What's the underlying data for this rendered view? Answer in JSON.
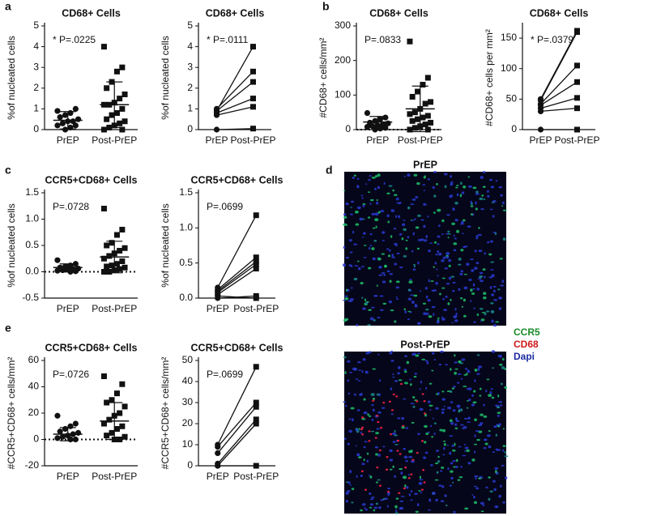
{
  "panel_letters": [
    "a",
    "b",
    "c",
    "d",
    "e"
  ],
  "chart_data": [
    {
      "type": "dot",
      "title": "CD68+ Cells",
      "y_label": "%of nucleated cells",
      "annotation": "* P=.0225",
      "categories": [
        "PrEP",
        "Post-PrEP"
      ],
      "groups": [
        [
          0.9,
          1.0,
          0.8,
          0.7,
          0.6,
          0.5,
          0.4,
          0.4,
          0.3,
          0.2,
          0.2,
          0.1,
          0.0
        ],
        [
          4.0,
          3.0,
          2.8,
          2.3,
          2.0,
          1.7,
          1.5,
          1.3,
          1.2,
          1.2,
          1.0,
          0.8,
          0.7,
          0.5,
          0.4,
          0.3,
          0.2,
          0.1,
          0.0,
          0.0
        ]
      ],
      "mean": [
        0.45,
        1.2
      ],
      "sd": [
        0.42,
        1.1
      ],
      "markers": [
        "circle",
        "square"
      ],
      "ylim": [
        0,
        5
      ],
      "yticks": [
        0,
        1,
        2,
        3,
        4,
        5
      ],
      "zero_line": false
    },
    {
      "type": "paired",
      "title": "CD68+ Cells",
      "y_label": "%of nucleated cells",
      "annotation": "* P=.0111",
      "categories": [
        "PrEP",
        "Post-PrEP"
      ],
      "subjects": [
        [
          0.9,
          4.0
        ],
        [
          1.0,
          2.8
        ],
        [
          0.9,
          2.3
        ],
        [
          0.8,
          1.5
        ],
        [
          0.7,
          1.1
        ],
        [
          0.0,
          0.05
        ]
      ],
      "markers": [
        "circle",
        "square"
      ],
      "ylim": [
        0,
        5
      ],
      "yticks": [
        0,
        1,
        2,
        3,
        4,
        5
      ],
      "zero_line": false
    },
    {
      "type": "dot",
      "title": "CD68+ Cells",
      "y_label": "#CD68+ cells/mm²",
      "annotation": "P=.0833",
      "categories": [
        "PrEP",
        "Post-PrEP"
      ],
      "groups": [
        [
          48,
          35,
          30,
          25,
          20,
          18,
          15,
          12,
          10,
          8,
          5,
          3,
          0
        ],
        [
          255,
          150,
          130,
          110,
          95,
          80,
          75,
          60,
          50,
          45,
          40,
          35,
          30,
          25,
          20,
          15,
          10,
          5,
          0,
          0
        ]
      ],
      "mean": [
        22,
        60
      ],
      "sd": [
        16,
        66
      ],
      "markers": [
        "circle",
        "square"
      ],
      "ylim": [
        0,
        300
      ],
      "yticks": [
        0,
        100,
        200,
        300
      ],
      "zero_line": true
    },
    {
      "type": "paired",
      "title": "CD68+ Cells",
      "y_label": "#CD68+ cells per mm²",
      "annotation": "* P=.0379",
      "categories": [
        "PrEP",
        "Post-PrEP"
      ],
      "subjects": [
        [
          50,
          162
        ],
        [
          48,
          160
        ],
        [
          42,
          105
        ],
        [
          40,
          78
        ],
        [
          35,
          52
        ],
        [
          30,
          35
        ],
        [
          0,
          0
        ]
      ],
      "markers": [
        "circle",
        "square"
      ],
      "ylim": [
        0,
        170
      ],
      "yticks": [
        0,
        50,
        100,
        150
      ],
      "zero_line": false
    },
    {
      "type": "dot",
      "title": "CCR5+CD68+ Cells",
      "y_label": "%of nucleated cells",
      "annotation": "P=.0728",
      "categories": [
        "PrEP",
        "Post-PrEP"
      ],
      "groups": [
        [
          0.22,
          0.15,
          0.12,
          0.1,
          0.08,
          0.06,
          0.05,
          0.04,
          0.03,
          0.02,
          0.01,
          0.0
        ],
        [
          1.2,
          0.8,
          0.7,
          0.55,
          0.5,
          0.45,
          0.4,
          0.35,
          0.3,
          0.25,
          0.2,
          0.15,
          0.12,
          0.1,
          0.08,
          0.05,
          0.03,
          0.0,
          0.0
        ]
      ],
      "mean": [
        0.08,
        0.28
      ],
      "sd": [
        0.07,
        0.3
      ],
      "markers": [
        "circle",
        "square"
      ],
      "ylim": [
        -0.5,
        1.5
      ],
      "yticks": [
        {
          "value": -0.5,
          "label": "-0.5"
        },
        {
          "value": 0,
          "label": "0.0"
        },
        0.5,
        {
          "value": 1,
          "label": "1.0"
        },
        1.5
      ],
      "zero_line": true
    },
    {
      "type": "paired",
      "title": "CCR5+CD68+ Cells",
      "y_label": "%of nucleated cells",
      "annotation": "P=.0699",
      "categories": [
        "PrEP",
        "Post-PrEP"
      ],
      "subjects": [
        [
          0.15,
          1.18
        ],
        [
          0.12,
          0.58
        ],
        [
          0.1,
          0.52
        ],
        [
          0.08,
          0.48
        ],
        [
          0.05,
          0.42
        ],
        [
          0.0,
          0.03
        ],
        [
          0.03,
          0.0
        ]
      ],
      "markers": [
        "circle",
        "square"
      ],
      "ylim": [
        0,
        1.5
      ],
      "yticks": [
        {
          "value": 0,
          "label": "0.0"
        },
        0.5,
        {
          "value": 1,
          "label": "1.0"
        },
        1.5
      ],
      "zero_line": false
    },
    {
      "type": "dot",
      "title": "CCR5+CD68+ Cells",
      "y_label": "#CCR5+CD68+ cells/mm²",
      "annotation": "P=.0726",
      "categories": [
        "PrEP",
        "Post-PrEP"
      ],
      "groups": [
        [
          18,
          12,
          10,
          8,
          6,
          5,
          4,
          3,
          2,
          1,
          0,
          0
        ],
        [
          48,
          42,
          35,
          30,
          28,
          25,
          20,
          18,
          15,
          12,
          10,
          8,
          5,
          3,
          2,
          0,
          0
        ]
      ],
      "mean": [
        4,
        14
      ],
      "sd": [
        5,
        14
      ],
      "markers": [
        "circle",
        "square"
      ],
      "ylim": [
        -20,
        60
      ],
      "yticks": [
        -20,
        0,
        20,
        40,
        60
      ],
      "zero_line": true
    },
    {
      "type": "paired",
      "title": "CCR5+CD68+ Cells",
      "y_label": "#CCR5+CD68+ cells/mm²",
      "annotation": "P=.0699",
      "categories": [
        "PrEP",
        "Post-PrEP"
      ],
      "subjects": [
        [
          10,
          47
        ],
        [
          9,
          30
        ],
        [
          6,
          28
        ],
        [
          1,
          22
        ],
        [
          0,
          20
        ],
        [
          0,
          0
        ]
      ],
      "markers": [
        "circle",
        "square"
      ],
      "ylim": [
        0,
        50
      ],
      "yticks": [
        0,
        10,
        20,
        30,
        40,
        50
      ],
      "zero_line": false
    }
  ],
  "panel_d": {
    "titles": [
      "PrEP",
      "Post-PrEP"
    ],
    "legend": [
      {
        "label": "CCR5",
        "color": "#1a8a2a"
      },
      {
        "label": "CD68",
        "color": "#d01818"
      },
      {
        "label": "Dapi",
        "color": "#1a2aa0"
      }
    ]
  }
}
